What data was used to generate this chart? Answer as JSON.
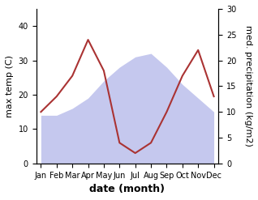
{
  "months": [
    "Jan",
    "Feb",
    "Mar",
    "Apr",
    "May",
    "Jun",
    "Jul",
    "Aug",
    "Sep",
    "Oct",
    "Nov",
    "Dec"
  ],
  "max_temp": [
    14,
    14,
    16,
    19,
    24,
    28,
    31,
    32,
    28,
    23,
    19,
    15
  ],
  "precipitation": [
    10,
    13,
    17,
    24,
    18,
    4,
    2,
    4,
    10,
    17,
    22,
    13
  ],
  "temp_color": "#aa3333",
  "precip_fill_color": "#c5c8ee",
  "left_ylabel": "max temp (C)",
  "right_ylabel": "med. precipitation (kg/m2)",
  "xlabel": "date (month)",
  "ylim_left": [
    0,
    45
  ],
  "ylim_right": [
    0,
    30
  ],
  "yticks_left": [
    0,
    10,
    20,
    30,
    40
  ],
  "yticks_right": [
    0,
    5,
    10,
    15,
    20,
    25,
    30
  ],
  "label_fontsize": 8,
  "tick_fontsize": 7,
  "xlabel_fontsize": 9
}
